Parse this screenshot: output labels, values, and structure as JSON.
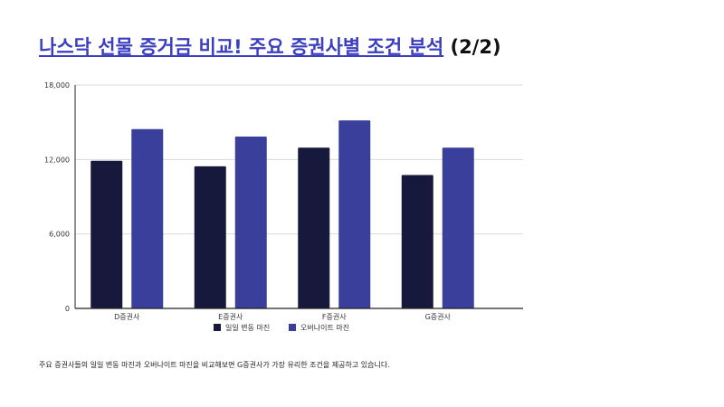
{
  "title": {
    "link_text": "나스닥 선물 증거금 비교! 주요 증권사별 조건 분석",
    "suffix": " (2/2)"
  },
  "footnote": "주요 증권사들의 일일 변동 마진과 오버나이트 마진을 비교해보면 G증권사가 가장 유리한 조건을 제공하고 있습니다.",
  "colors": {
    "title_link": "#3b3fbf",
    "series_1": "#16193b",
    "series_2": "#3a3f9b",
    "grid": "#d9d9d9"
  },
  "chart_data": {
    "type": "bar",
    "categories": [
      "D증권사",
      "E증권사",
      "F증권사",
      "G증권사"
    ],
    "series": [
      {
        "name": "일일 변동 마진",
        "values": [
          11900,
          11450,
          12950,
          10750
        ],
        "color": "#16193b"
      },
      {
        "name": "오버나이트 마진",
        "values": [
          14450,
          13850,
          15150,
          12950
        ],
        "color": "#3a3f9b"
      }
    ],
    "yticks": [
      "0",
      "6,000",
      "12,000",
      "18,000"
    ],
    "ytick_values": [
      0,
      6000,
      12000,
      18000
    ],
    "ylim": [
      0,
      18000
    ],
    "grid": true,
    "legend_position": "bottom"
  }
}
